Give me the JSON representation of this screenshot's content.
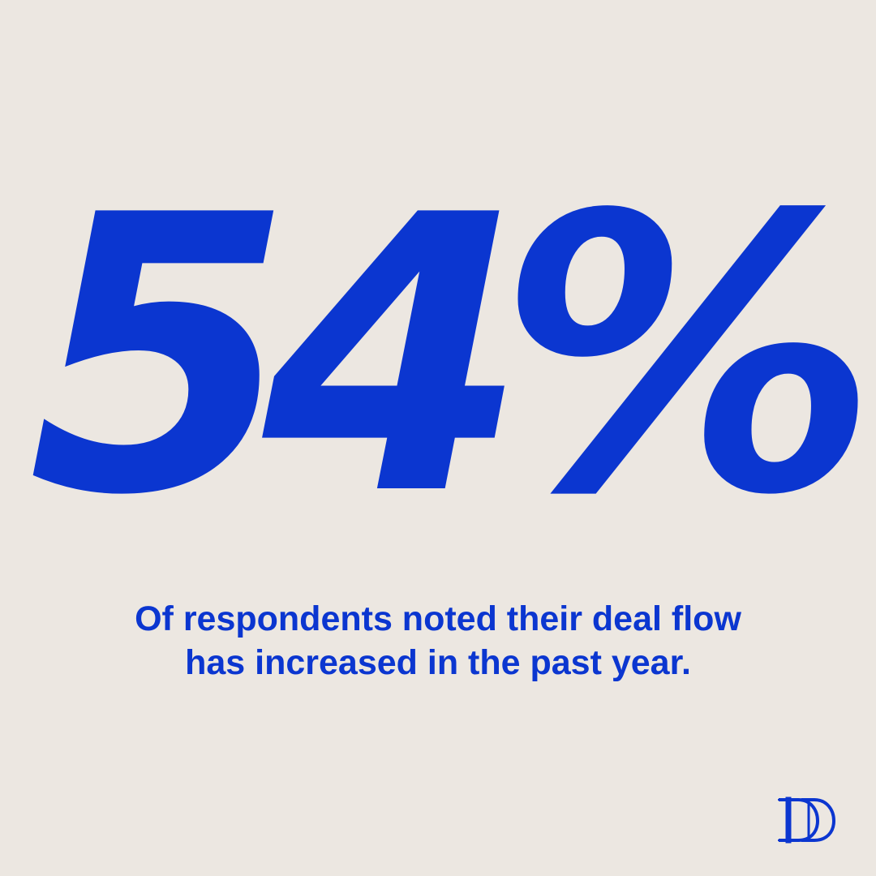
{
  "colors": {
    "background": "#ece7e1",
    "accent": "#0b36d0"
  },
  "statistic": {
    "value": "54%",
    "caption_line1": "Of respondents noted their deal flow",
    "caption_line2": "has increased in the past year."
  },
  "logo": {
    "icon": "dd-monogram-logo",
    "letters": "DD"
  }
}
